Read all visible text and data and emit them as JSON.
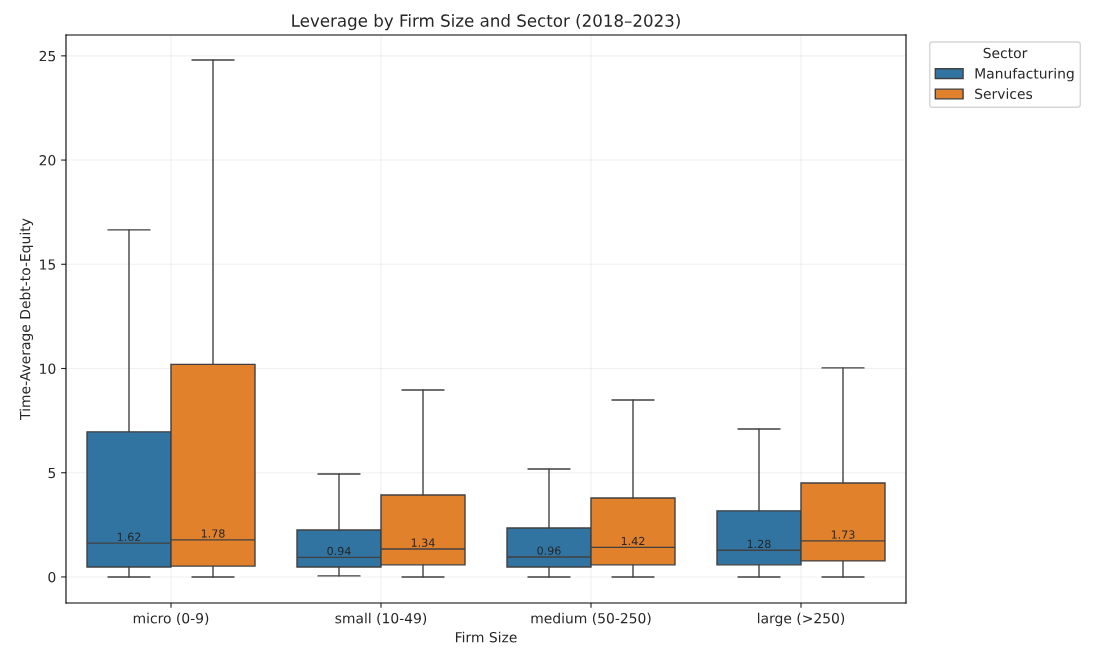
{
  "chart_data": {
    "type": "box",
    "title": "Leverage by Firm Size and Sector (2018–2023)",
    "xlabel": "Firm Size",
    "ylabel": "Time-Average Debt-to-Equity",
    "legend_title": "Sector",
    "categories": [
      "micro (0-9)",
      "small (10-49)",
      "medium (50-250)",
      "large (>250)"
    ],
    "series": [
      {
        "name": "Manufacturing",
        "color": "#3274a1",
        "value_labels": [
          "1.62",
          "0.94",
          "0.96",
          "1.28"
        ],
        "boxes": [
          {
            "low": 0,
            "q1": 0.48,
            "median": 1.62,
            "q3": 6.96,
            "high": 16.65
          },
          {
            "low": 0.05,
            "q1": 0.48,
            "median": 0.94,
            "q3": 2.25,
            "high": 4.94
          },
          {
            "low": 0,
            "q1": 0.48,
            "median": 0.96,
            "q3": 2.35,
            "high": 5.18
          },
          {
            "low": 0,
            "q1": 0.58,
            "median": 1.28,
            "q3": 3.17,
            "high": 7.1
          }
        ]
      },
      {
        "name": "Services",
        "color": "#e1812c",
        "value_labels": [
          "1.78",
          "1.34",
          "1.42",
          "1.73"
        ],
        "boxes": [
          {
            "low": 0,
            "q1": 0.52,
            "median": 1.78,
            "q3": 10.2,
            "high": 24.8
          },
          {
            "low": 0,
            "q1": 0.58,
            "median": 1.34,
            "q3": 3.93,
            "high": 8.97
          },
          {
            "low": 0,
            "q1": 0.58,
            "median": 1.42,
            "q3": 3.79,
            "high": 8.49
          },
          {
            "low": 0,
            "q1": 0.77,
            "median": 1.73,
            "q3": 4.51,
            "high": 10.03
          }
        ]
      }
    ],
    "ylim": [
      -1.25,
      26
    ],
    "yticks": [
      0,
      5,
      10,
      15,
      20,
      25
    ],
    "grid": true,
    "legend": "top right"
  }
}
